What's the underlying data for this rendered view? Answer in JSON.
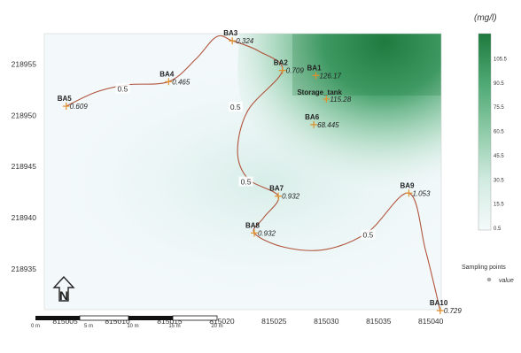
{
  "chart_data": {
    "type": "heatmap",
    "unit_label": "(mg/l)",
    "xlim": [
      815003,
      815041
    ],
    "ylim": [
      218931,
      218958
    ],
    "x_ticks": [
      815005,
      815010,
      815015,
      815020,
      815025,
      815030,
      815035,
      815040
    ],
    "y_ticks": [
      218935,
      218940,
      218945,
      218950,
      218955
    ],
    "colorbar": {
      "ticks": [
        0.5,
        15.5,
        30.5,
        45.5,
        60.5,
        75.5,
        90.5,
        105.5
      ],
      "range": [
        0.5,
        120
      ],
      "color_low": "#f4fafa",
      "color_high": "#1e7a3e"
    },
    "points": [
      {
        "name": "BA1",
        "value": "126.17",
        "x": 815029.0,
        "y": 218953.9
      },
      {
        "name": "Storage_tank",
        "value": "115.28",
        "x": 815030.0,
        "y": 218951.6
      },
      {
        "name": "BA2",
        "value": "0.709",
        "x": 815025.8,
        "y": 218954.4
      },
      {
        "name": "BA3",
        "value": "0.324",
        "x": 815021.0,
        "y": 218957.3
      },
      {
        "name": "BA4",
        "value": "0.465",
        "x": 815014.9,
        "y": 218953.3
      },
      {
        "name": "BA5",
        "value": "0.609",
        "x": 815005.1,
        "y": 218950.9
      },
      {
        "name": "BA6",
        "value": "68.445",
        "x": 815028.8,
        "y": 218949.1
      },
      {
        "name": "BA7",
        "value": "0.932",
        "x": 815025.4,
        "y": 218942.1
      },
      {
        "name": "BA8",
        "value": "0.932",
        "x": 815023.1,
        "y": 218938.5
      },
      {
        "name": "BA9",
        "value": "1.053",
        "x": 815037.9,
        "y": 218942.4
      },
      {
        "name": "BA10",
        "value": "0.729",
        "x": 815040.9,
        "y": 218930.9
      }
    ],
    "contour": {
      "level_label": "0.5",
      "path": [
        [
          815005.1,
          218950.9
        ],
        [
          815008.0,
          218952.3
        ],
        [
          815011.0,
          218953.0
        ],
        [
          815014.9,
          218953.3
        ],
        [
          815017.5,
          218955.5
        ],
        [
          815019.5,
          218957.7
        ],
        [
          815021.0,
          218957.3
        ],
        [
          815023.5,
          218956.3
        ],
        [
          815025.8,
          218954.4
        ],
        [
          815022.5,
          218950.5
        ],
        [
          815021.5,
          218946.5
        ],
        [
          815022.5,
          218943.8
        ],
        [
          815025.4,
          218942.1
        ],
        [
          815024.0,
          218940.0
        ],
        [
          815023.1,
          218938.5
        ],
        [
          815026.0,
          218937.1
        ],
        [
          815030.0,
          218936.9
        ],
        [
          815034.0,
          218938.6
        ],
        [
          815037.9,
          218942.4
        ],
        [
          815039.5,
          218936.8
        ],
        [
          815040.9,
          218930.9
        ]
      ],
      "label_positions": [
        [
          815010.5,
          218952.6
        ],
        [
          815021.3,
          218950.8
        ],
        [
          815022.3,
          218943.5
        ],
        [
          815034.0,
          218938.3
        ]
      ]
    },
    "legend": {
      "title": "Sampling points",
      "item": "value"
    },
    "north_label": "N",
    "scale_bar": {
      "labels": [
        "0 m",
        "5 m",
        "10 m",
        "15 m",
        "20 m"
      ]
    }
  },
  "colors": {
    "contour": "#b0533c",
    "point": "#e0902a",
    "legend_point": "#aaaaaa"
  }
}
